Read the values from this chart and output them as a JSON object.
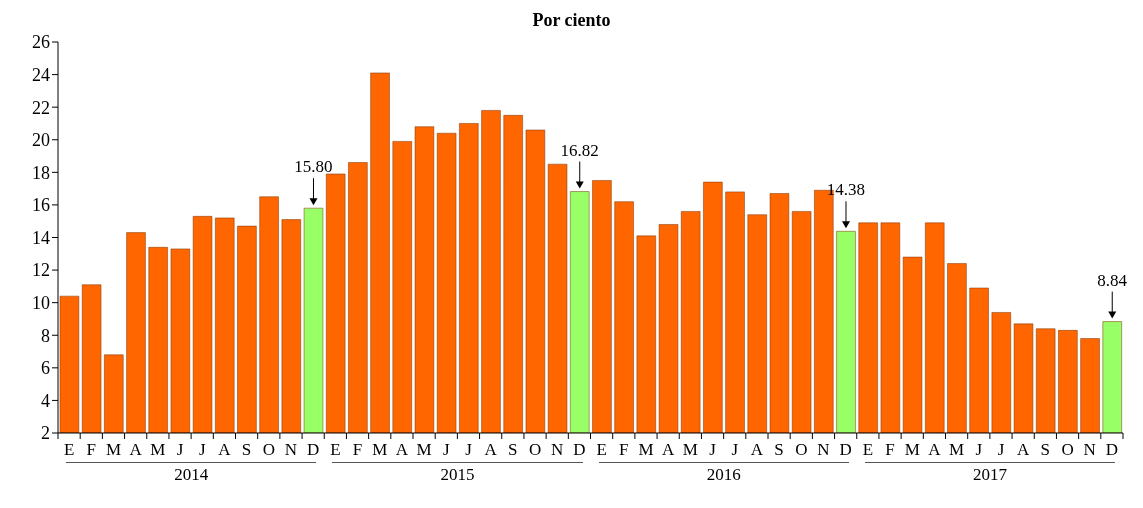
{
  "chart_data": {
    "type": "bar",
    "title": "Por ciento",
    "categories": [
      "E",
      "F",
      "M",
      "A",
      "M",
      "J",
      "J",
      "A",
      "S",
      "O",
      "N",
      "D",
      "E",
      "F",
      "M",
      "A",
      "M",
      "J",
      "J",
      "A",
      "S",
      "O",
      "N",
      "D",
      "E",
      "F",
      "M",
      "A",
      "M",
      "J",
      "J",
      "A",
      "S",
      "O",
      "N",
      "D",
      "E",
      "F",
      "M",
      "A",
      "M",
      "J",
      "J",
      "A",
      "S",
      "O",
      "N",
      "D"
    ],
    "values": [
      10.4,
      11.1,
      6.8,
      14.3,
      13.4,
      13.3,
      15.3,
      15.2,
      14.7,
      16.5,
      15.1,
      15.8,
      17.9,
      18.6,
      24.1,
      19.9,
      20.8,
      20.4,
      21.0,
      21.8,
      21.5,
      20.6,
      18.5,
      16.82,
      17.5,
      16.2,
      14.1,
      14.8,
      15.6,
      17.4,
      16.8,
      15.4,
      16.7,
      15.6,
      16.9,
      14.38,
      14.9,
      14.9,
      12.8,
      14.9,
      12.4,
      10.9,
      9.4,
      8.7,
      8.4,
      8.3,
      7.8,
      8.84
    ],
    "colors": [
      "#ff6600",
      "#ff6600",
      "#ff6600",
      "#ff6600",
      "#ff6600",
      "#ff6600",
      "#ff6600",
      "#ff6600",
      "#ff6600",
      "#ff6600",
      "#ff6600",
      "#99ff66",
      "#ff6600",
      "#ff6600",
      "#ff6600",
      "#ff6600",
      "#ff6600",
      "#ff6600",
      "#ff6600",
      "#ff6600",
      "#ff6600",
      "#ff6600",
      "#ff6600",
      "#99ff66",
      "#ff6600",
      "#ff6600",
      "#ff6600",
      "#ff6600",
      "#ff6600",
      "#ff6600",
      "#ff6600",
      "#ff6600",
      "#ff6600",
      "#ff6600",
      "#ff6600",
      "#99ff66",
      "#ff6600",
      "#ff6600",
      "#ff6600",
      "#ff6600",
      "#ff6600",
      "#ff6600",
      "#ff6600",
      "#ff6600",
      "#ff6600",
      "#ff6600",
      "#ff6600",
      "#99ff66"
    ],
    "value_labels": [
      null,
      null,
      null,
      null,
      null,
      null,
      null,
      null,
      null,
      null,
      null,
      "15.80",
      null,
      null,
      null,
      null,
      null,
      null,
      null,
      null,
      null,
      null,
      null,
      "16.82",
      null,
      null,
      null,
      null,
      null,
      null,
      null,
      null,
      null,
      null,
      null,
      "14.38",
      null,
      null,
      null,
      null,
      null,
      null,
      null,
      null,
      null,
      null,
      null,
      "8.84"
    ],
    "annotations": [
      "2014",
      "2015",
      "2016",
      "2017"
    ],
    "ylim": [
      2,
      26
    ],
    "yticks": [
      2,
      4,
      6,
      8,
      10,
      12,
      14,
      16,
      18,
      20,
      22,
      24,
      26
    ],
    "grid": false,
    "legend": false
  }
}
